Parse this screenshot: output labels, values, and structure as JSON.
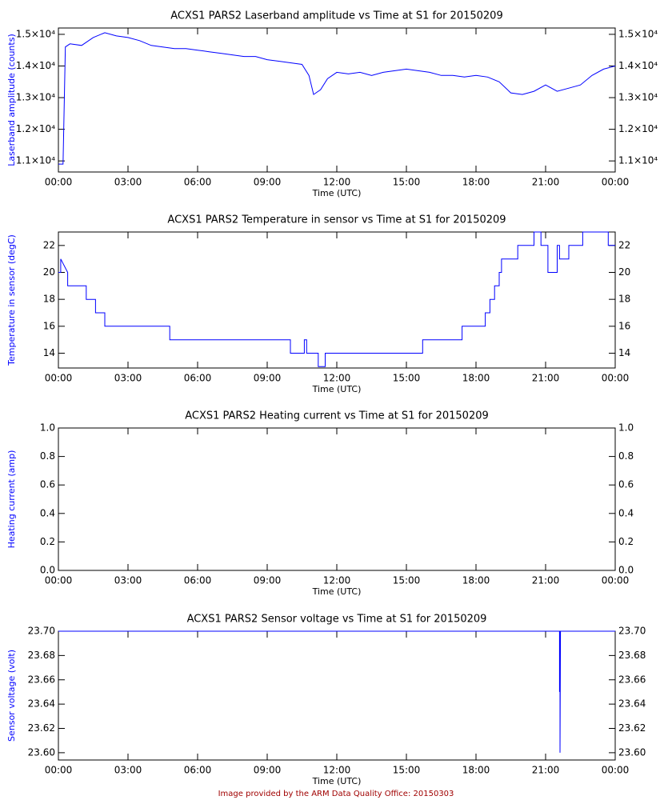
{
  "chart_data": [
    {
      "type": "line",
      "title": "ACXS1 PARS2 Laserband amplitude vs Time at S1 for 20150209",
      "x_label": "Time (UTC)",
      "y_label": "Laserband amplitude (counts)",
      "color": "#0000ff",
      "xlim": [
        0,
        24
      ],
      "xticks": [
        {
          "value": 0,
          "label": "00:00"
        },
        {
          "value": 3,
          "label": "03:00"
        },
        {
          "value": 6,
          "label": "06:00"
        },
        {
          "value": 9,
          "label": "09:00"
        },
        {
          "value": 12,
          "label": "12:00"
        },
        {
          "value": 15,
          "label": "15:00"
        },
        {
          "value": 18,
          "label": "18:00"
        },
        {
          "value": 21,
          "label": "21:00"
        },
        {
          "value": 24,
          "label": "00:00"
        }
      ],
      "ylim": [
        10650,
        15200
      ],
      "yticks": [
        {
          "value": 11000,
          "label": "1.1×10⁴"
        },
        {
          "value": 12000,
          "label": "1.2×10⁴"
        },
        {
          "value": 13000,
          "label": "1.3×10⁴"
        },
        {
          "value": 14000,
          "label": "1.4×10⁴"
        },
        {
          "value": 15000,
          "label": "1.5×10⁴"
        }
      ],
      "x": [
        0,
        0.2,
        0.3,
        0.5,
        1.0,
        1.5,
        2.0,
        2.5,
        3.0,
        3.5,
        4.0,
        4.5,
        5.0,
        5.5,
        6.0,
        6.5,
        7.0,
        7.5,
        8.0,
        8.5,
        9.0,
        9.5,
        10.0,
        10.5,
        10.8,
        11.0,
        11.3,
        11.6,
        12.0,
        12.5,
        13.0,
        13.5,
        14.0,
        14.5,
        15.0,
        15.5,
        16.0,
        16.5,
        17.0,
        17.5,
        18.0,
        18.5,
        19.0,
        19.5,
        20.0,
        20.5,
        21.0,
        21.5,
        22.0,
        22.5,
        23.0,
        23.5,
        24.0
      ],
      "values": [
        10900,
        10900,
        14600,
        14700,
        14650,
        14900,
        15050,
        14950,
        14900,
        14800,
        14650,
        14600,
        14550,
        14550,
        14500,
        14450,
        14400,
        14350,
        14300,
        14300,
        14200,
        14150,
        14100,
        14050,
        13700,
        13100,
        13250,
        13600,
        13800,
        13750,
        13800,
        13700,
        13800,
        13850,
        13900,
        13850,
        13800,
        13700,
        13700,
        13650,
        13700,
        13650,
        13500,
        13150,
        13100,
        13200,
        13400,
        13200,
        13300,
        13400,
        13700,
        13900,
        14000
      ]
    },
    {
      "type": "line",
      "title": "ACXS1 PARS2 Temperature in sensor vs Time at S1 for 20150209",
      "x_label": "Time (UTC)",
      "y_label": "Temperature in sensor (degC)",
      "color": "#0000ff",
      "xlim": [
        0,
        24
      ],
      "xticks": [
        {
          "value": 0,
          "label": "00:00"
        },
        {
          "value": 3,
          "label": "03:00"
        },
        {
          "value": 6,
          "label": "06:00"
        },
        {
          "value": 9,
          "label": "09:00"
        },
        {
          "value": 12,
          "label": "12:00"
        },
        {
          "value": 15,
          "label": "15:00"
        },
        {
          "value": 18,
          "label": "18:00"
        },
        {
          "value": 21,
          "label": "21:00"
        },
        {
          "value": 24,
          "label": "00:00"
        }
      ],
      "ylim": [
        12.9,
        23.0
      ],
      "yticks": [
        14,
        16,
        18,
        20,
        22
      ],
      "x": [
        0,
        0.1,
        0.1,
        0.4,
        0.4,
        1.2,
        1.2,
        1.6,
        1.6,
        2.0,
        2.0,
        4.8,
        4.8,
        10.0,
        10.0,
        10.6,
        10.6,
        10.7,
        10.7,
        11.2,
        11.2,
        11.5,
        11.5,
        15.7,
        15.7,
        17.4,
        17.4,
        18.4,
        18.4,
        18.6,
        18.6,
        18.8,
        18.8,
        19.0,
        19.0,
        19.1,
        19.1,
        19.8,
        19.8,
        20.5,
        20.5,
        20.8,
        20.8,
        21.1,
        21.1,
        21.5,
        21.5,
        21.6,
        21.6,
        22.0,
        22.0,
        22.6,
        22.6,
        23.7,
        23.7,
        24.0
      ],
      "values": [
        20,
        20,
        21,
        20,
        19,
        19,
        18,
        18,
        17,
        17,
        16,
        16,
        15,
        15,
        14,
        14,
        15,
        15,
        14,
        14,
        13,
        13,
        14,
        14,
        15,
        15,
        16,
        16,
        17,
        17,
        18,
        18,
        19,
        19,
        20,
        20,
        21,
        21,
        22,
        22,
        23,
        23,
        22,
        22,
        20,
        20,
        22,
        22,
        21,
        21,
        22,
        22,
        23,
        23,
        22,
        22
      ]
    },
    {
      "type": "line",
      "title": "ACXS1 PARS2 Heating current vs Time at S1 for 20150209",
      "x_label": "Time (UTC)",
      "y_label": "Heating current (amp)",
      "color": "#0000ff",
      "xlim": [
        0,
        24
      ],
      "xticks": [
        {
          "value": 0,
          "label": "00:00"
        },
        {
          "value": 3,
          "label": "03:00"
        },
        {
          "value": 6,
          "label": "06:00"
        },
        {
          "value": 9,
          "label": "09:00"
        },
        {
          "value": 12,
          "label": "12:00"
        },
        {
          "value": 15,
          "label": "15:00"
        },
        {
          "value": 18,
          "label": "18:00"
        },
        {
          "value": 21,
          "label": "21:00"
        },
        {
          "value": 24,
          "label": "00:00"
        }
      ],
      "ylim": [
        0,
        1
      ],
      "yticks": [
        {
          "value": 0,
          "label": "0.0"
        },
        0.2,
        0.4,
        0.6,
        0.8,
        {
          "value": 1,
          "label": "1.0"
        }
      ]
    },
    {
      "type": "line",
      "title": "ACXS1 PARS2 Sensor voltage vs Time at S1 for 20150209",
      "x_label": "Time (UTC)",
      "y_label": "Sensor voltage (volt)",
      "color": "#0000ff",
      "xlim": [
        0,
        24
      ],
      "xticks": [
        {
          "value": 0,
          "label": "00:00"
        },
        {
          "value": 3,
          "label": "03:00"
        },
        {
          "value": 6,
          "label": "06:00"
        },
        {
          "value": 9,
          "label": "09:00"
        },
        {
          "value": 12,
          "label": "12:00"
        },
        {
          "value": 15,
          "label": "15:00"
        },
        {
          "value": 18,
          "label": "18:00"
        },
        {
          "value": 21,
          "label": "21:00"
        },
        {
          "value": 24,
          "label": "00:00"
        }
      ],
      "ylim": [
        23.594,
        23.7
      ],
      "yticks": [
        {
          "value": 23.6,
          "label": "23.60"
        },
        23.62,
        23.64,
        23.66,
        23.68,
        {
          "value": 23.7,
          "label": "23.70"
        }
      ],
      "x": [
        0,
        21.6,
        21.6,
        21.62,
        21.62,
        21.64,
        24
      ],
      "values": [
        23.7,
        23.7,
        23.65,
        23.7,
        23.6,
        23.7,
        23.7
      ]
    }
  ],
  "footer": "Image provided by the ARM Data Quality Office: 20150303"
}
